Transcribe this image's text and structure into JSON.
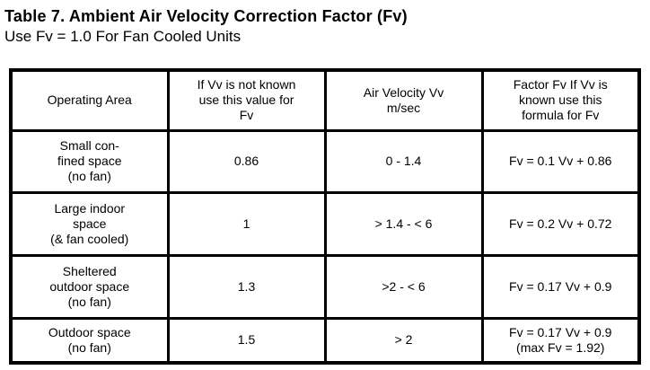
{
  "title": "Table 7. Ambient Air Velocity Correction Factor (Fv)",
  "subtitle": "Use Fv = 1.0 For Fan Cooled Units",
  "colors": {
    "text": "#000000",
    "border": "#000000",
    "background": "#ffffff"
  },
  "table": {
    "headers": {
      "operating_area": "Operating Area",
      "fv_value": "If Vv is not known\nuse this value for\nFv",
      "air_velocity": "Air Velocity Vv\nm/sec",
      "formula": "Factor Fv If Vv is\nknown use this\nformula for Fv"
    },
    "rows": [
      {
        "operating_area": "Small con-\nfined space\n(no fan)",
        "fv_value": "0.86",
        "air_velocity": "0 - 1.4",
        "formula": "Fv = 0.1 Vv + 0.86"
      },
      {
        "operating_area": "Large indoor\nspace\n(& fan cooled)",
        "fv_value": "1",
        "air_velocity": "> 1.4 - < 6",
        "formula": "Fv = 0.2 Vv + 0.72"
      },
      {
        "operating_area": "Sheltered\noutdoor space\n(no fan)",
        "fv_value": "1.3",
        "air_velocity": ">2 - < 6",
        "formula": "Fv = 0.17 Vv + 0.9"
      },
      {
        "operating_area": "Outdoor space\n(no fan)",
        "fv_value": "1.5",
        "air_velocity": "> 2",
        "formula": "Fv = 0.17 Vv + 0.9\n(max Fv = 1.92)"
      }
    ]
  }
}
